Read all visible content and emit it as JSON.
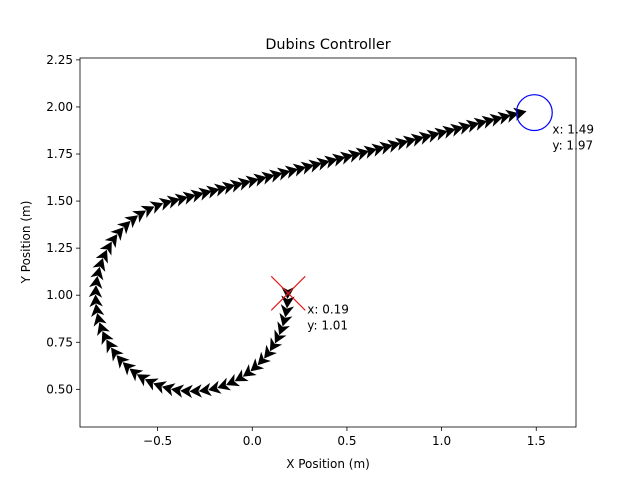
{
  "chart_data": {
    "type": "scatter",
    "title": "Dubins Controller",
    "xlabel": "X Position (m)",
    "ylabel": "Y Position (m)",
    "xlim": [
      -0.91,
      1.71
    ],
    "ylim": [
      0.3,
      2.26
    ],
    "grid": false,
    "xticks": [
      {
        "value": -0.5,
        "label": "−0.5"
      },
      {
        "value": 0.0,
        "label": "0.0"
      },
      {
        "value": 0.5,
        "label": "0.5"
      },
      {
        "value": 1.0,
        "label": "1.0"
      },
      {
        "value": 1.5,
        "label": "1.5"
      }
    ],
    "yticks": [
      {
        "value": 0.5,
        "label": "0.50"
      },
      {
        "value": 0.75,
        "label": "0.75"
      },
      {
        "value": 1.0,
        "label": "1.00"
      },
      {
        "value": 1.25,
        "label": "1.25"
      },
      {
        "value": 1.5,
        "label": "1.50"
      },
      {
        "value": 1.75,
        "label": "1.75"
      },
      {
        "value": 2.0,
        "label": "2.00"
      },
      {
        "value": 2.25,
        "label": "2.25"
      }
    ],
    "path": {
      "start": [
        0.19,
        1.01
      ],
      "turn_center": [
        -0.32,
        1.0
      ],
      "turn_radius": 0.51,
      "tangent_point": [
        -0.45,
        1.49
      ],
      "end": [
        1.42,
        1.97
      ],
      "color": "#000000"
    },
    "start_marker": {
      "x": 0.19,
      "y": 1.01,
      "color": "#e41a1c",
      "label_x": "x: 0.19",
      "label_y": "y: 1.01"
    },
    "goal_marker": {
      "x": 1.49,
      "y": 1.97,
      "radius": 0.095,
      "color": "#0000ff",
      "label_x": "x: 1.49",
      "label_y": "y: 1.97"
    }
  }
}
